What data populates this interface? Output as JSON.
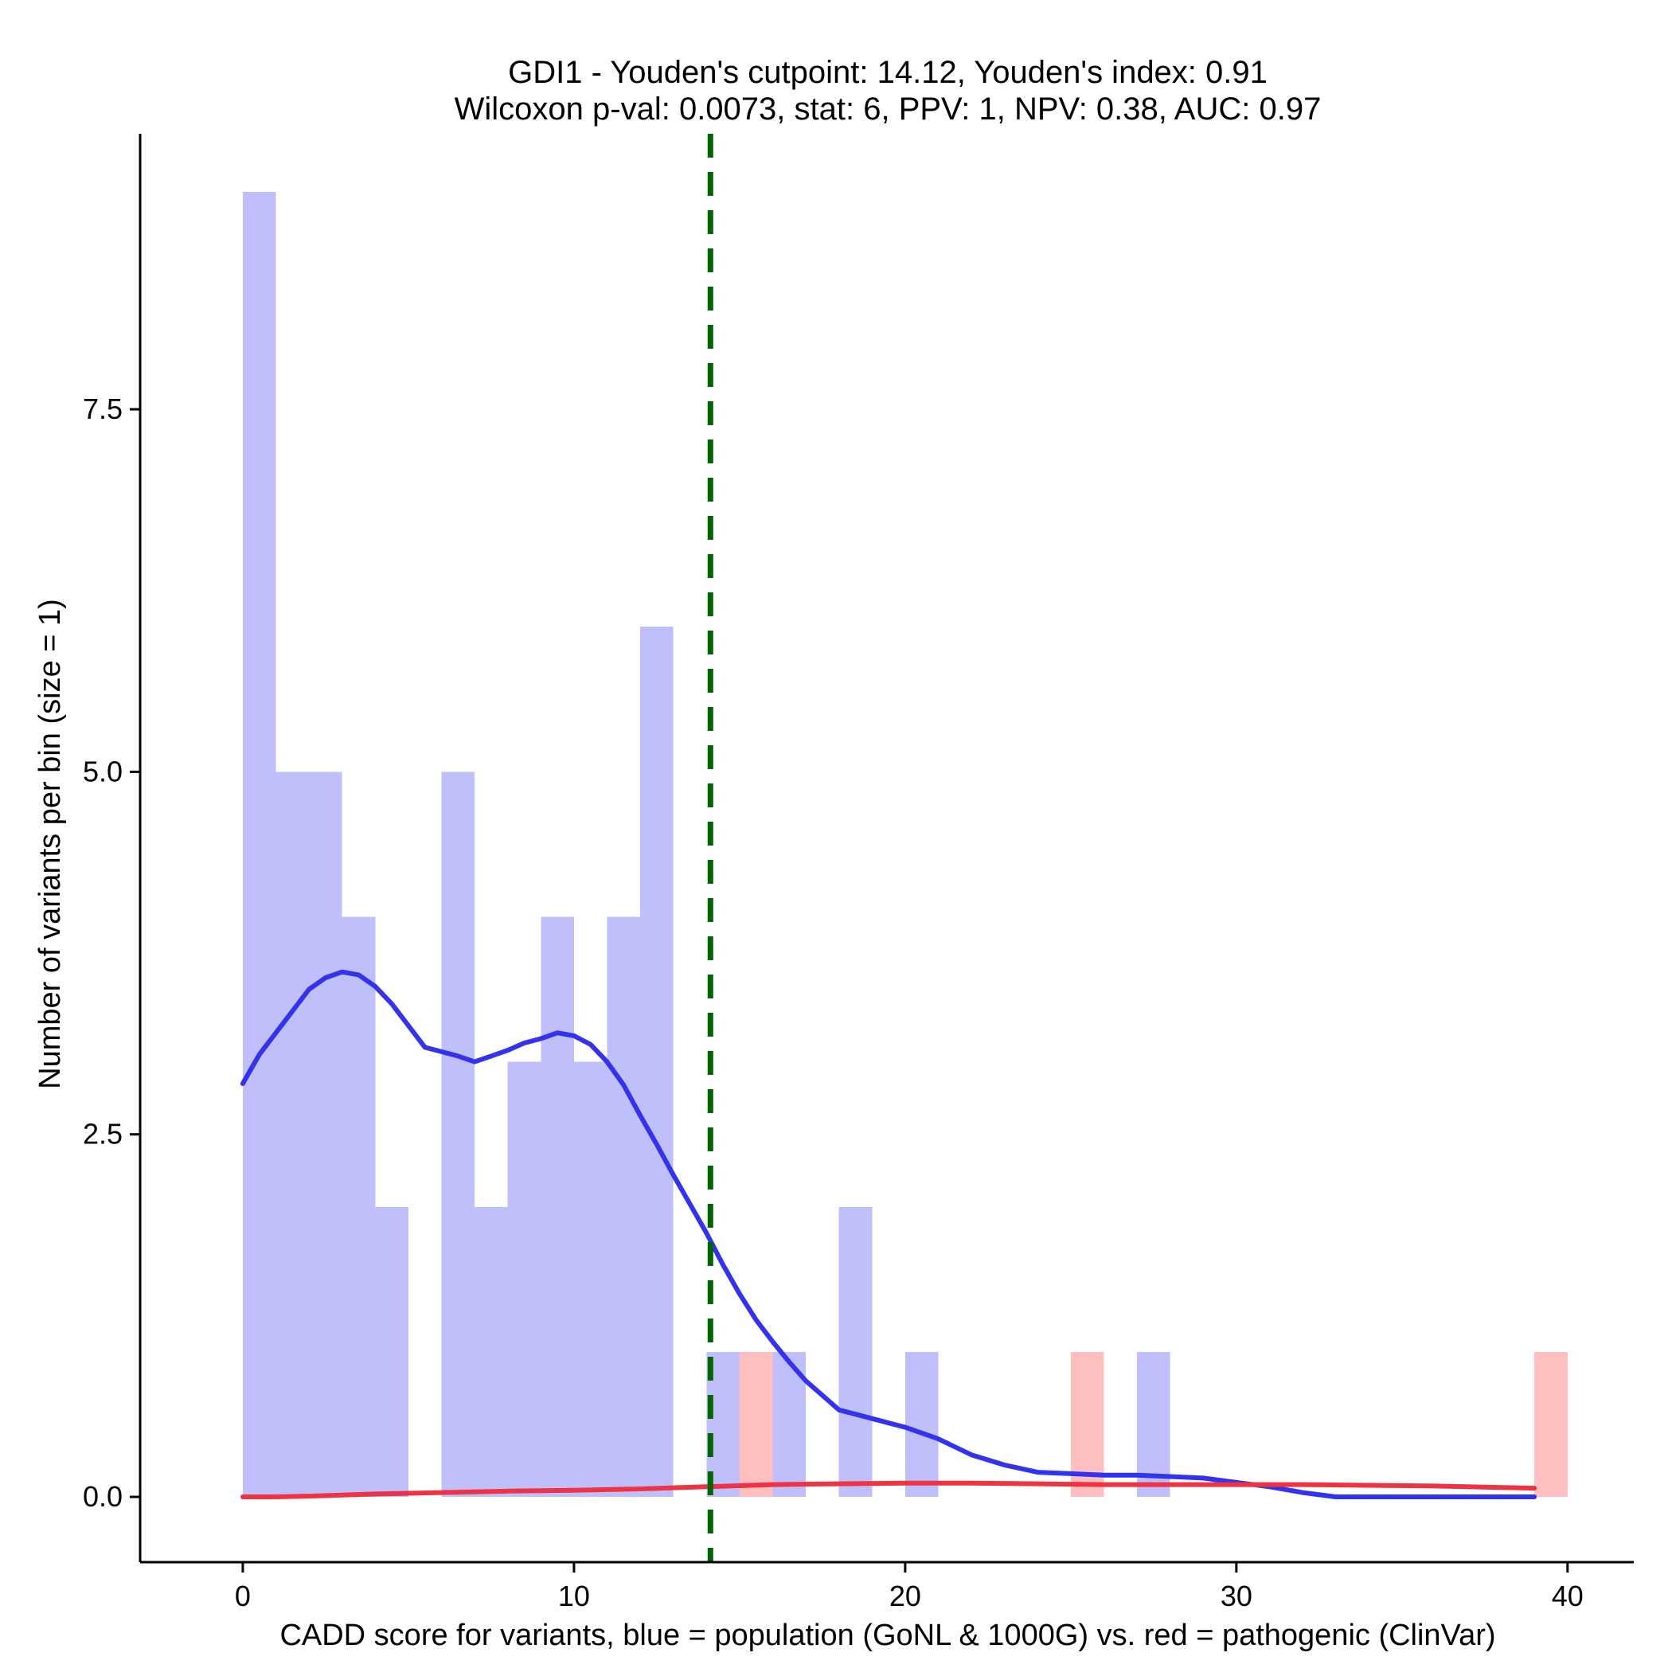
{
  "chart_data": {
    "type": "histogram-density",
    "title_lines": [
      "GDI1 - Youden's cutpoint: 14.12, Youden's index: 0.91",
      "Wilcoxon p-val: 0.0073, stat: 6, PPV: 1, NPV: 0.38, AUC: 0.97"
    ],
    "xlabel": "CADD score for variants, blue = population (GoNL & 1000G) vs. red = pathogenic (ClinVar)",
    "ylabel": "Number of variants per bin (size = 1)",
    "xlim": [
      -3.1,
      42.0
    ],
    "ylim": [
      -0.45,
      9.4
    ],
    "x_ticks": [
      0,
      10,
      20,
      30,
      40
    ],
    "x_tick_labels": [
      "0",
      "10",
      "20",
      "30",
      "40"
    ],
    "y_ticks": [
      0,
      2.5,
      5,
      7.5
    ],
    "y_tick_labels": [
      "0.0",
      "2.5",
      "5.0",
      "7.5"
    ],
    "bin_width": 1,
    "cutpoint": 14.12,
    "series": [
      {
        "name": "population (GoNL & 1000G)",
        "color": "#bfbffb",
        "bins": [
          {
            "x0": 0,
            "count": 9
          },
          {
            "x0": 1,
            "count": 5
          },
          {
            "x0": 2,
            "count": 5
          },
          {
            "x0": 3,
            "count": 4
          },
          {
            "x0": 4,
            "count": 2
          },
          {
            "x0": 5,
            "count": 0
          },
          {
            "x0": 6,
            "count": 5
          },
          {
            "x0": 7,
            "count": 2
          },
          {
            "x0": 8,
            "count": 3
          },
          {
            "x0": 9,
            "count": 4
          },
          {
            "x0": 10,
            "count": 3
          },
          {
            "x0": 11,
            "count": 4
          },
          {
            "x0": 12,
            "count": 6
          },
          {
            "x0": 14,
            "count": 1
          },
          {
            "x0": 16,
            "count": 1
          },
          {
            "x0": 18,
            "count": 2
          },
          {
            "x0": 20,
            "count": 1
          },
          {
            "x0": 27,
            "count": 1
          }
        ]
      },
      {
        "name": "pathogenic (ClinVar)",
        "color": "#ffbfbf",
        "bins": [
          {
            "x0": 15,
            "count": 1
          },
          {
            "x0": 25,
            "count": 1
          },
          {
            "x0": 39,
            "count": 1
          }
        ]
      }
    ],
    "density_curves": [
      {
        "name": "population density",
        "color": "#3333ee",
        "points": [
          [
            0,
            2.85
          ],
          [
            0.5,
            3.05
          ],
          [
            1,
            3.2
          ],
          [
            1.5,
            3.35
          ],
          [
            2,
            3.5
          ],
          [
            2.5,
            3.58
          ],
          [
            3,
            3.62
          ],
          [
            3.5,
            3.6
          ],
          [
            4,
            3.52
          ],
          [
            4.5,
            3.4
          ],
          [
            5,
            3.25
          ],
          [
            5.5,
            3.1
          ],
          [
            6,
            3.07
          ],
          [
            6.5,
            3.04
          ],
          [
            7,
            3.0
          ],
          [
            7.5,
            3.04
          ],
          [
            8,
            3.08
          ],
          [
            8.5,
            3.13
          ],
          [
            9,
            3.16
          ],
          [
            9.5,
            3.2
          ],
          [
            10,
            3.18
          ],
          [
            10.5,
            3.12
          ],
          [
            11,
            3.0
          ],
          [
            11.5,
            2.84
          ],
          [
            12,
            2.63
          ],
          [
            12.5,
            2.43
          ],
          [
            13,
            2.22
          ],
          [
            13.5,
            2.02
          ],
          [
            14,
            1.82
          ],
          [
            14.5,
            1.6
          ],
          [
            15,
            1.4
          ],
          [
            15.5,
            1.22
          ],
          [
            16,
            1.07
          ],
          [
            16.5,
            0.93
          ],
          [
            17,
            0.8
          ],
          [
            17.5,
            0.7
          ],
          [
            18,
            0.6
          ],
          [
            18.5,
            0.57
          ],
          [
            19,
            0.54
          ],
          [
            19.5,
            0.51
          ],
          [
            20,
            0.48
          ],
          [
            21,
            0.4
          ],
          [
            22,
            0.29
          ],
          [
            23,
            0.22
          ],
          [
            24,
            0.17
          ],
          [
            25,
            0.16
          ],
          [
            26,
            0.15
          ],
          [
            27,
            0.15
          ],
          [
            28,
            0.14
          ],
          [
            29,
            0.13
          ],
          [
            30,
            0.1
          ],
          [
            31,
            0.07
          ],
          [
            32,
            0.03
          ],
          [
            33,
            0.0
          ],
          [
            35,
            0.0
          ],
          [
            37,
            0.0
          ],
          [
            39,
            0.0
          ]
        ]
      },
      {
        "name": "pathogenic density",
        "color": "#ee3344",
        "points": [
          [
            0,
            0.0
          ],
          [
            1,
            0.0
          ],
          [
            2,
            0.005
          ],
          [
            4,
            0.02
          ],
          [
            6,
            0.03
          ],
          [
            8,
            0.04
          ],
          [
            10,
            0.045
          ],
          [
            12,
            0.055
          ],
          [
            14,
            0.07
          ],
          [
            16,
            0.085
          ],
          [
            18,
            0.09
          ],
          [
            20,
            0.095
          ],
          [
            22,
            0.095
          ],
          [
            24,
            0.09
          ],
          [
            26,
            0.085
          ],
          [
            28,
            0.085
          ],
          [
            30,
            0.085
          ],
          [
            32,
            0.085
          ],
          [
            34,
            0.08
          ],
          [
            36,
            0.075
          ],
          [
            38,
            0.065
          ],
          [
            39,
            0.06
          ]
        ]
      }
    ],
    "cutpoint_line": {
      "color": "#006400",
      "style": "dashed"
    },
    "axis_color": "#000000"
  }
}
